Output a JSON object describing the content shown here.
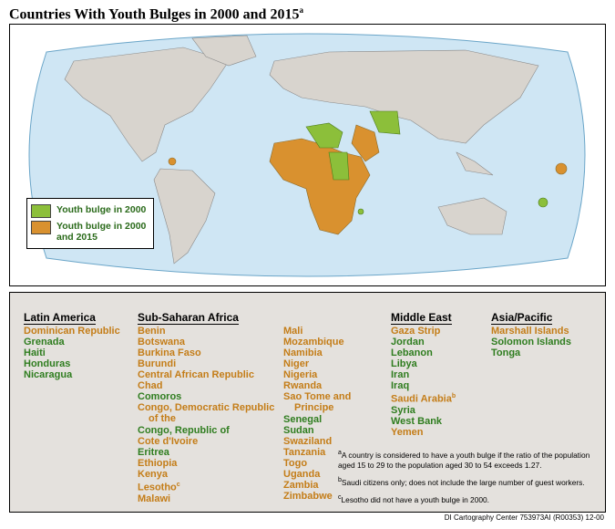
{
  "header": {
    "title": "Countries With Youth Bulges in 2000 and 2015",
    "note": "a"
  },
  "legend": [
    {
      "label": "Youth bulge in 2000",
      "color": "#8cbf3a"
    },
    {
      "label": "Youth bulge in 2000 and 2015",
      "color": "#d9912f"
    }
  ],
  "text_colors": {
    "2000": "#2f7d1f",
    "2015": "#c47d18"
  },
  "regions": [
    {
      "name": "Latin America",
      "columns": [
        [
          {
            "name": "Dominican Republic",
            "status": "2015"
          },
          {
            "name": "Grenada",
            "status": "2000"
          },
          {
            "name": "Haiti",
            "status": "2000"
          },
          {
            "name": "Honduras",
            "status": "2000"
          },
          {
            "name": "Nicaragua",
            "status": "2000"
          }
        ]
      ]
    },
    {
      "name": "Sub-Saharan Africa",
      "columns": [
        [
          {
            "name": "Benin",
            "status": "2015"
          },
          {
            "name": "Botswana",
            "status": "2015"
          },
          {
            "name": "Burkina Faso",
            "status": "2015"
          },
          {
            "name": "Burundi",
            "status": "2015"
          },
          {
            "name": "Central African Republic",
            "status": "2015"
          },
          {
            "name": "Chad",
            "status": "2015"
          },
          {
            "name": "Comoros",
            "status": "2000"
          },
          {
            "name": "Congo, Democratic Republic of the",
            "status": "2015"
          },
          {
            "name": "Congo, Republic of",
            "status": "2000"
          },
          {
            "name": "Cote d'Ivoire",
            "status": "2015"
          },
          {
            "name": "Eritrea",
            "status": "2000"
          },
          {
            "name": "Ethiopia",
            "status": "2015"
          },
          {
            "name": "Kenya",
            "status": "2015"
          },
          {
            "name": "Lesotho",
            "status": "2015",
            "note": "c"
          },
          {
            "name": "Malawi",
            "status": "2015"
          }
        ],
        [
          {
            "name": "Mali",
            "status": "2015"
          },
          {
            "name": "Mozambique",
            "status": "2015"
          },
          {
            "name": "Namibia",
            "status": "2015"
          },
          {
            "name": "Niger",
            "status": "2015"
          },
          {
            "name": "Nigeria",
            "status": "2015"
          },
          {
            "name": "Rwanda",
            "status": "2015"
          },
          {
            "name": "Sao Tome and Principe",
            "status": "2015"
          },
          {
            "name": "Senegal",
            "status": "2000"
          },
          {
            "name": "Sudan",
            "status": "2000"
          },
          {
            "name": "Swaziland",
            "status": "2015"
          },
          {
            "name": "Tanzania",
            "status": "2015"
          },
          {
            "name": "Togo",
            "status": "2015"
          },
          {
            "name": "Uganda",
            "status": "2015"
          },
          {
            "name": "Zambia",
            "status": "2015"
          },
          {
            "name": "Zimbabwe",
            "status": "2015"
          }
        ]
      ]
    },
    {
      "name": "Middle East",
      "columns": [
        [
          {
            "name": "Gaza Strip",
            "status": "2015"
          },
          {
            "name": "Jordan",
            "status": "2000"
          },
          {
            "name": "Lebanon",
            "status": "2000"
          },
          {
            "name": "Libya",
            "status": "2000"
          },
          {
            "name": "Iran",
            "status": "2000"
          },
          {
            "name": "Iraq",
            "status": "2000"
          },
          {
            "name": "Saudi Arabia",
            "status": "2015",
            "note": "b"
          },
          {
            "name": "Syria",
            "status": "2000"
          },
          {
            "name": "West Bank",
            "status": "2000"
          },
          {
            "name": "Yemen",
            "status": "2015"
          }
        ]
      ]
    },
    {
      "name": "Asia/Pacific",
      "columns": [
        [
          {
            "name": "Marshall Islands",
            "status": "2015"
          },
          {
            "name": "Solomon Islands",
            "status": "2000"
          },
          {
            "name": "Tonga",
            "status": "2000"
          }
        ]
      ]
    }
  ],
  "footnotes": [
    {
      "mark": "a",
      "text": "A country is considered to have a youth bulge if the ratio of the population aged 15 to 29 to the population aged 30 to 54 exceeds 1.27."
    },
    {
      "mark": "b",
      "text": "Saudi citizens only; does not include the large number of guest workers."
    },
    {
      "mark": "c",
      "text": "Lesotho did not have a youth bulge in 2000."
    }
  ],
  "credit": "DI Cartography Center 753973AI (R00353) 12-00"
}
